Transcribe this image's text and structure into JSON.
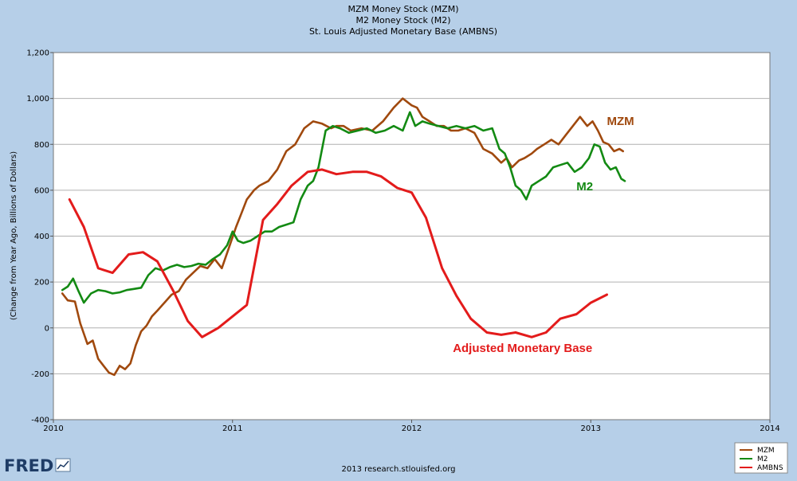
{
  "chart_data": {
    "type": "line",
    "title": [
      "MZM Money Stock (MZM)",
      "M2 Money Stock (M2)",
      "St. Louis Adjusted Monetary Base (AMBNS)"
    ],
    "ylabel": "(Change from Year Ago, Billions of Dollars)",
    "xlabel": "",
    "xlim": [
      2010,
      2014
    ],
    "ylim": [
      -400,
      1200
    ],
    "x_ticks": [
      2010,
      2011,
      2012,
      2013,
      2014
    ],
    "x_tick_labels": [
      "2010",
      "2011",
      "2012",
      "2013",
      "2014"
    ],
    "y_ticks": [
      -400,
      -200,
      0,
      200,
      400,
      600,
      800,
      1000,
      1200
    ],
    "y_tick_labels": [
      "-400",
      "-200",
      "0",
      "200",
      "400",
      "600",
      "800",
      "1,000",
      "1,200"
    ],
    "grid": "horizontal",
    "legend_position": "bottom-right",
    "series": [
      {
        "name": "MZM",
        "color": "#a0490e",
        "x": [
          2010.05,
          2010.08,
          2010.12,
          2010.15,
          2010.19,
          2010.22,
          2010.25,
          2010.28,
          2010.31,
          2010.34,
          2010.37,
          2010.4,
          2010.43,
          2010.46,
          2010.49,
          2010.52,
          2010.55,
          2010.58,
          2010.62,
          2010.66,
          2010.7,
          2010.74,
          2010.78,
          2010.82,
          2010.86,
          2010.9,
          2010.94,
          2010.98,
          2011.02,
          2011.05,
          2011.08,
          2011.12,
          2011.15,
          2011.2,
          2011.25,
          2011.3,
          2011.35,
          2011.4,
          2011.45,
          2011.5,
          2011.55,
          2011.58,
          2011.62,
          2011.66,
          2011.72,
          2011.78,
          2011.84,
          2011.9,
          2011.95,
          2012.0,
          2012.03,
          2012.06,
          2012.1,
          2012.14,
          2012.18,
          2012.22,
          2012.26,
          2012.3,
          2012.35,
          2012.4,
          2012.45,
          2012.5,
          2012.53,
          2012.56,
          2012.6,
          2012.63,
          2012.67,
          2012.7,
          2012.74,
          2012.78,
          2012.82,
          2012.86,
          2012.9,
          2012.94,
          2012.98,
          2013.01,
          2013.04,
          2013.07,
          2013.1,
          2013.13,
          2013.16,
          2013.18
        ],
        "values": [
          150,
          120,
          115,
          20,
          -70,
          -55,
          -135,
          -165,
          -195,
          -205,
          -165,
          -180,
          -155,
          -75,
          -15,
          10,
          50,
          75,
          110,
          145,
          160,
          210,
          240,
          270,
          260,
          300,
          260,
          350,
          440,
          500,
          560,
          600,
          620,
          640,
          690,
          770,
          800,
          870,
          900,
          890,
          870,
          880,
          880,
          860,
          870,
          860,
          900,
          960,
          1000,
          970,
          960,
          920,
          900,
          880,
          880,
          860,
          860,
          870,
          850,
          780,
          760,
          720,
          740,
          700,
          730,
          740,
          760,
          780,
          800,
          820,
          800,
          840,
          880,
          920,
          880,
          900,
          860,
          810,
          800,
          770,
          780,
          770
        ]
      },
      {
        "name": "M2",
        "color": "#138a13",
        "x": [
          2010.05,
          2010.08,
          2010.11,
          2010.14,
          2010.17,
          2010.21,
          2010.25,
          2010.29,
          2010.33,
          2010.37,
          2010.41,
          2010.45,
          2010.49,
          2010.53,
          2010.57,
          2010.61,
          2010.65,
          2010.69,
          2010.73,
          2010.77,
          2010.81,
          2010.85,
          2010.89,
          2010.93,
          2010.97,
          2011.0,
          2011.03,
          2011.06,
          2011.1,
          2011.14,
          2011.18,
          2011.22,
          2011.26,
          2011.3,
          2011.34,
          2011.38,
          2011.42,
          2011.45,
          2011.48,
          2011.52,
          2011.56,
          2011.6,
          2011.65,
          2011.7,
          2011.75,
          2011.8,
          2011.85,
          2011.9,
          2011.95,
          2011.99,
          2012.02,
          2012.06,
          2012.1,
          2012.15,
          2012.2,
          2012.25,
          2012.3,
          2012.35,
          2012.4,
          2012.45,
          2012.49,
          2012.52,
          2012.55,
          2012.58,
          2012.61,
          2012.64,
          2012.67,
          2012.71,
          2012.75,
          2012.79,
          2012.83,
          2012.87,
          2012.91,
          2012.95,
          2012.99,
          2013.02,
          2013.05,
          2013.08,
          2013.11,
          2013.14,
          2013.17,
          2013.19
        ],
        "values": [
          165,
          180,
          215,
          160,
          110,
          150,
          165,
          160,
          150,
          155,
          165,
          170,
          175,
          230,
          260,
          250,
          265,
          275,
          265,
          270,
          280,
          275,
          300,
          320,
          360,
          420,
          380,
          370,
          380,
          400,
          420,
          420,
          440,
          450,
          460,
          560,
          620,
          640,
          700,
          860,
          880,
          870,
          850,
          860,
          870,
          850,
          860,
          880,
          860,
          940,
          880,
          900,
          890,
          880,
          870,
          880,
          870,
          880,
          860,
          870,
          780,
          760,
          700,
          620,
          600,
          560,
          620,
          640,
          660,
          700,
          710,
          720,
          680,
          700,
          740,
          800,
          790,
          720,
          690,
          700,
          650,
          640
        ]
      },
      {
        "name": "AMBNS",
        "color": "#e31b1b",
        "x": [
          2010.09,
          2010.17,
          2010.25,
          2010.33,
          2010.42,
          2010.5,
          2010.58,
          2010.67,
          2010.75,
          2010.83,
          2010.92,
          2011.0,
          2011.08,
          2011.17,
          2011.25,
          2011.33,
          2011.42,
          2011.5,
          2011.58,
          2011.67,
          2011.75,
          2011.83,
          2011.92,
          2012.0,
          2012.08,
          2012.17,
          2012.25,
          2012.33,
          2012.42,
          2012.5,
          2012.58,
          2012.67,
          2012.75,
          2012.83,
          2012.92,
          2013.0,
          2013.09
        ],
        "values": [
          560,
          440,
          260,
          240,
          320,
          330,
          290,
          160,
          30,
          -40,
          0,
          50,
          100,
          470,
          540,
          620,
          680,
          690,
          670,
          680,
          680,
          660,
          610,
          590,
          480,
          260,
          140,
          40,
          -20,
          -30,
          -20,
          -40,
          -20,
          40,
          60,
          110,
          145
        ]
      }
    ],
    "annotations": [
      {
        "text": "MZM",
        "color": "#a0490e",
        "x": 2013.09,
        "y": 885
      },
      {
        "text": "M2",
        "color": "#138a13",
        "x": 2012.92,
        "y": 600
      },
      {
        "text": "Adjusted Monetary Base",
        "color": "#e31b1b",
        "x": 2012.23,
        "y": -105
      }
    ],
    "legend": [
      "MZM",
      "M2",
      "AMBNS"
    ]
  },
  "footer": {
    "logo_text": "FRED",
    "credit": "2013 research.stlouisfed.org"
  },
  "colors": {
    "background": "#b6cfe8",
    "plot_background": "#ffffff",
    "grid": "#b0b0b0"
  }
}
